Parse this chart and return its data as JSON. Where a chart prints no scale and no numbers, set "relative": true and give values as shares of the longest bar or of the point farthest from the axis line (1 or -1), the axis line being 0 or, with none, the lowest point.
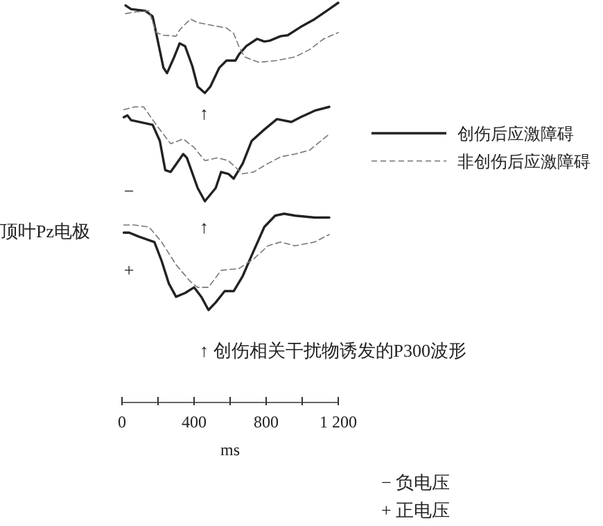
{
  "chart_data": [
    {
      "type": "line",
      "relative": true,
      "xlim": [
        0,
        1200
      ],
      "tick_labels": false,
      "series": [
        {
          "color": "#222222",
          "line_style": "solid",
          "x": [
            20,
            50,
            130,
            170,
            190,
            230,
            250,
            290,
            320,
            350,
            390,
            420,
            460,
            490,
            540,
            580,
            630,
            650,
            690,
            750,
            790,
            820,
            880,
            920,
            990,
            1070,
            1150,
            1200
          ],
          "values": [
            0.97,
            0.93,
            0.91,
            0.85,
            0.66,
            0.28,
            0.22,
            0.4,
            0.55,
            0.52,
            0.3,
            0.07,
            0,
            0.07,
            0.28,
            0.36,
            0.36,
            0.43,
            0.52,
            0.6,
            0.57,
            0.58,
            0.63,
            0.64,
            0.73,
            0.82,
            0.93,
            1
          ]
        },
        {
          "color": "#777777",
          "line_style": "dashed",
          "x": [
            20,
            80,
            150,
            190,
            230,
            300,
            320,
            380,
            420,
            500,
            580,
            620,
            650,
            680,
            760,
            860,
            960,
            1040,
            1120,
            1200
          ],
          "values": [
            0.88,
            0.9,
            0.91,
            0.67,
            0.64,
            0.63,
            0.7,
            0.82,
            0.78,
            0.75,
            0.72,
            0.66,
            0.51,
            0.4,
            0.34,
            0.36,
            0.4,
            0.48,
            0.6,
            0.67
          ]
        }
      ],
      "annotations": [
        "↑"
      ]
    },
    {
      "type": "line",
      "relative": true,
      "xlim": [
        0,
        1200
      ],
      "tick_labels": false,
      "legend": "right",
      "series": [
        {
          "name": "创伤后应激障碍",
          "color": "#222222",
          "line_style": "solid",
          "x": [
            10,
            30,
            50,
            170,
            210,
            240,
            270,
            340,
            360,
            420,
            460,
            520,
            550,
            590,
            620,
            670,
            720,
            790,
            860,
            940,
            990,
            1070,
            1150
          ],
          "values": [
            0.89,
            0.91,
            0.86,
            0.81,
            0.64,
            0.33,
            0.31,
            0.5,
            0.46,
            0.14,
            0,
            0.14,
            0.31,
            0.29,
            0.24,
            0.4,
            0.64,
            0.76,
            0.87,
            0.84,
            0.89,
            0.96,
            1
          ]
        },
        {
          "name": "非创伤后应激障碍",
          "color": "#777777",
          "line_style": "dashed",
          "x": [
            10,
            70,
            120,
            190,
            270,
            340,
            400,
            460,
            530,
            590,
            670,
            730,
            810,
            880,
            960,
            1040,
            1150
          ],
          "values": [
            0.97,
            1,
            1,
            0.81,
            0.61,
            0.66,
            0.57,
            0.43,
            0.46,
            0.43,
            0.29,
            0.31,
            0.4,
            0.47,
            0.5,
            0.54,
            0.71
          ]
        }
      ],
      "annotations": [
        "↑",
        "−"
      ]
    },
    {
      "type": "line",
      "relative": true,
      "xlim": [
        0,
        1200
      ],
      "tick_labels": "x",
      "xlabel": "ms",
      "ylabel": "顶叶Pz电极",
      "xticks": [
        0,
        {
          "value": 200,
          "label": null
        },
        400,
        {
          "value": 600,
          "label": null
        },
        800,
        {
          "value": 1000,
          "label": null
        },
        {
          "value": 1200,
          "label": "1 200"
        }
      ],
      "series": [
        {
          "color": "#222222",
          "line_style": "solid",
          "x": [
            10,
            40,
            90,
            180,
            220,
            260,
            300,
            350,
            400,
            440,
            480,
            520,
            570,
            620,
            670,
            720,
            790,
            850,
            900,
            960,
            1070,
            1150
          ],
          "values": [
            0.9,
            0.9,
            0.88,
            0.85,
            0.75,
            0.63,
            0.56,
            0.58,
            0.61,
            0.56,
            0.49,
            0.53,
            0.59,
            0.59,
            0.67,
            0.78,
            0.93,
            0.99,
            1,
            0.99,
            0.98,
            0.98
          ]
        },
        {
          "color": "#777777",
          "line_style": "dashed",
          "x": [
            10,
            70,
            150,
            220,
            300,
            380,
            420,
            480,
            550,
            650,
            730,
            810,
            880,
            960,
            1070,
            1150
          ],
          "values": [
            0.94,
            0.94,
            0.93,
            0.85,
            0.73,
            0.64,
            0.61,
            0.61,
            0.7,
            0.71,
            0.76,
            0.83,
            0.85,
            0.83,
            0.85,
            0.89
          ]
        }
      ],
      "annotations": [
        "↑  创伤相关干扰物诱发的P300波形",
        "+",
        "−  负电压",
        "+  正电压"
      ]
    }
  ]
}
